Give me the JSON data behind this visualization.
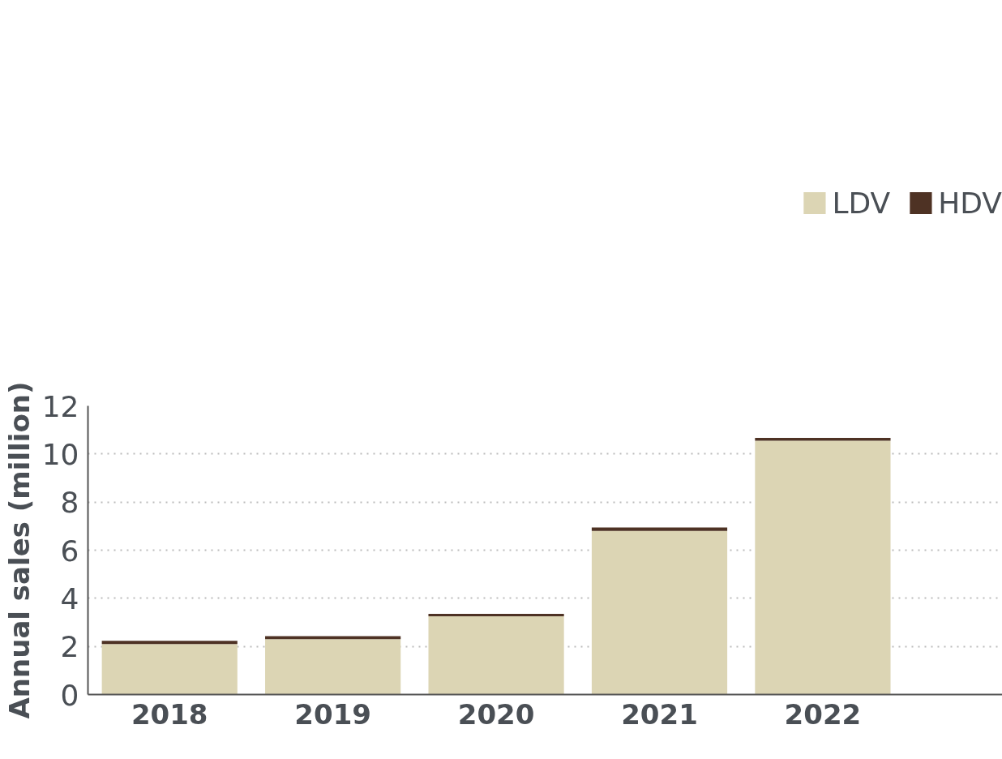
{
  "chart_data": {
    "type": "bar",
    "ylabel": "Annual sales (million)",
    "categories": [
      "2018",
      "2019",
      "2020",
      "2021",
      "2022"
    ],
    "series": [
      {
        "name": "LDV",
        "color": "#dcd5b4",
        "values": [
          2.1,
          2.3,
          3.25,
          6.8,
          10.55
        ]
      },
      {
        "name": "HDV",
        "color": "#4e3224",
        "values": [
          0.13,
          0.13,
          0.1,
          0.14,
          0.12
        ]
      }
    ],
    "stacked": true,
    "ylim": [
      0,
      12
    ],
    "yticks": [
      0,
      2,
      4,
      6,
      8,
      10,
      12
    ],
    "grid": "y",
    "legend": "top right"
  }
}
